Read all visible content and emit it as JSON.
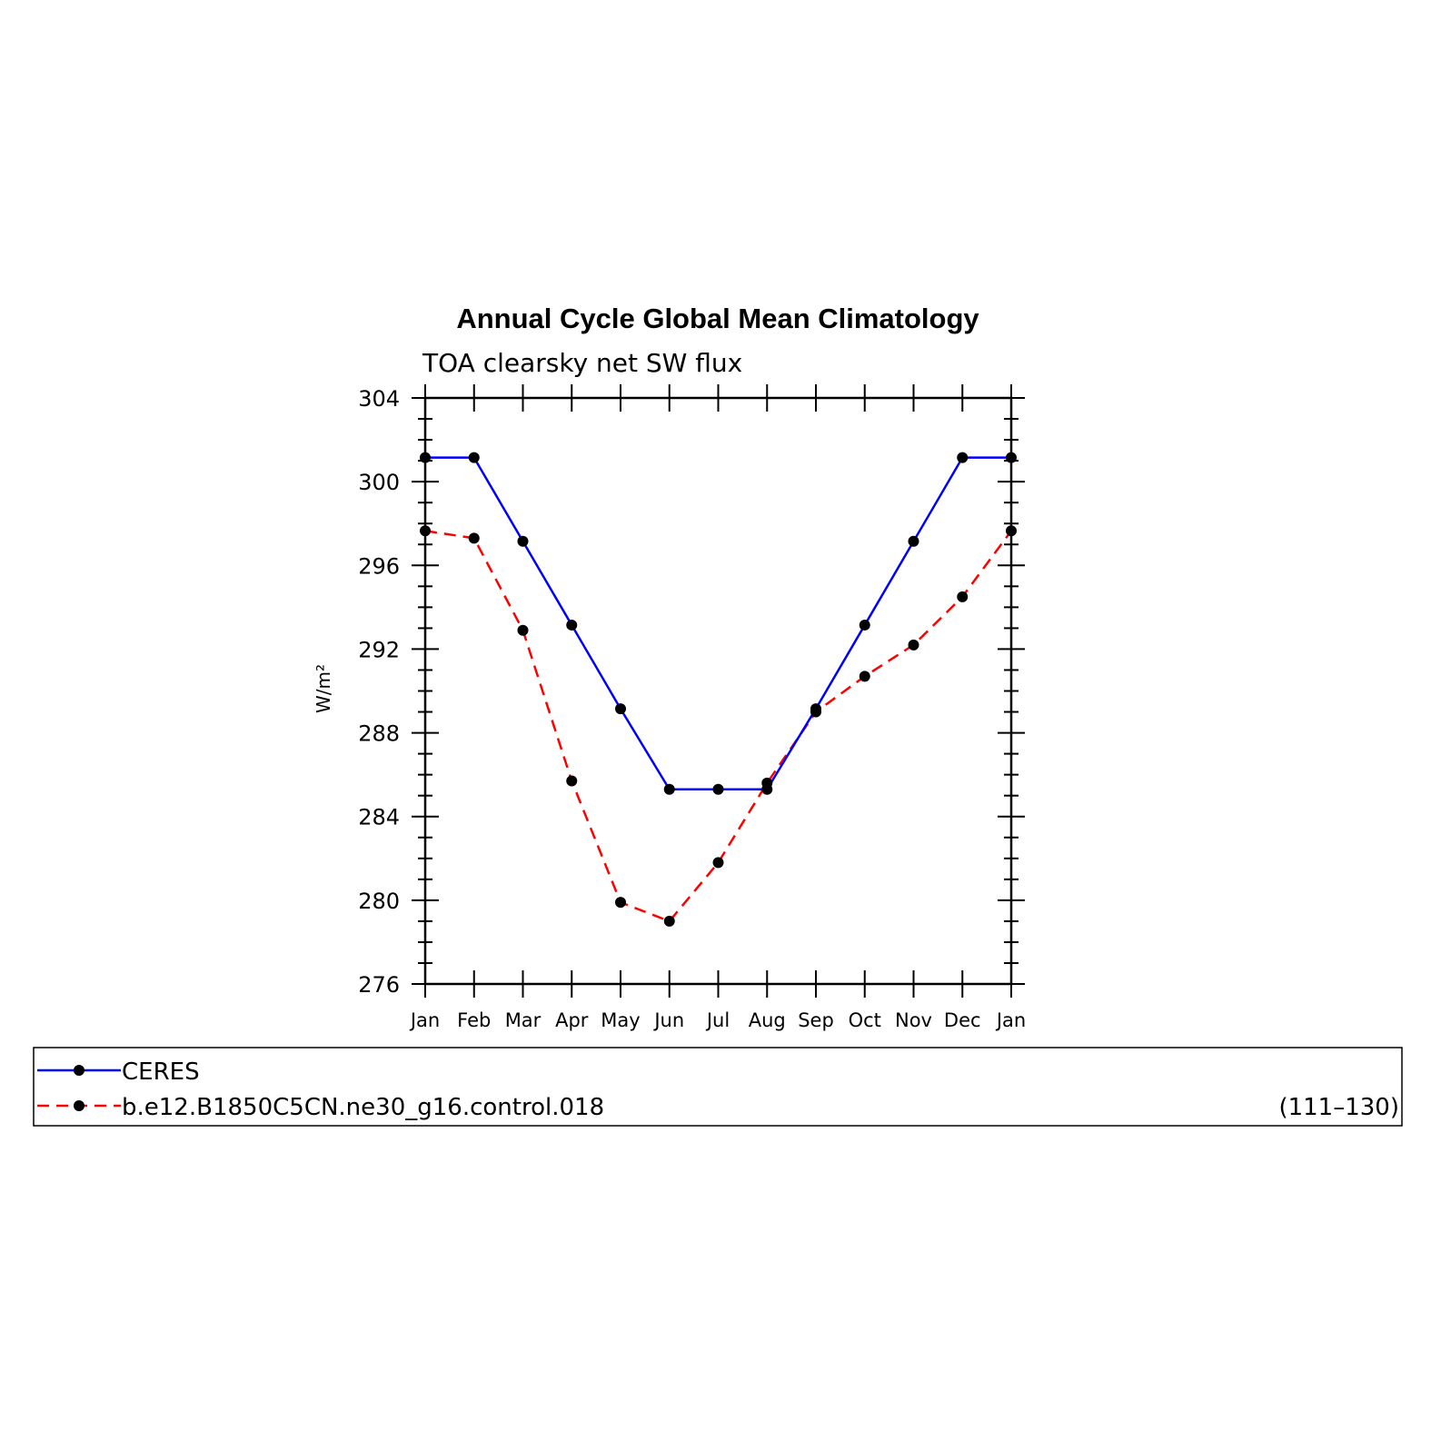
{
  "chart_data": {
    "type": "line",
    "title": "Annual Cycle Global Mean Climatology",
    "subtitle": "TOA clearsky net SW flux",
    "ylabel": "W/m²",
    "xlabel": "",
    "categories": [
      "Jan",
      "Feb",
      "Mar",
      "Apr",
      "May",
      "Jun",
      "Jul",
      "Aug",
      "Sep",
      "Oct",
      "Nov",
      "Dec",
      "Jan"
    ],
    "ylim": [
      276,
      304
    ],
    "yticks": [
      276,
      280,
      284,
      288,
      292,
      296,
      300,
      304
    ],
    "series": [
      {
        "name": "CERES",
        "color": "#0000ff",
        "dash": "solid",
        "values": [
          301.15,
          301.15,
          297.15,
          293.15,
          289.15,
          285.3,
          285.3,
          285.3,
          289.15,
          293.15,
          297.15,
          301.15,
          301.15
        ]
      },
      {
        "name": "b.e12.B1850C5CN.ne30_g16.control.018",
        "color": "#ff0000",
        "dash": "dashed",
        "values": [
          297.65,
          297.3,
          292.9,
          285.7,
          279.9,
          279.0,
          281.8,
          285.6,
          289.0,
          290.7,
          292.2,
          294.5,
          297.65
        ]
      }
    ],
    "legend": {
      "placement": "bottom",
      "note": "(111–130)"
    }
  }
}
